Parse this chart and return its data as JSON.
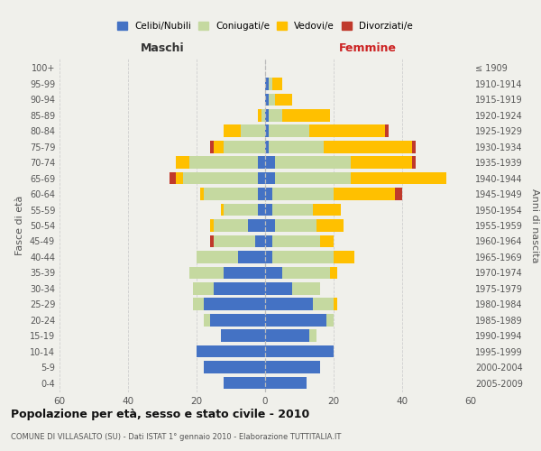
{
  "age_groups": [
    "0-4",
    "5-9",
    "10-14",
    "15-19",
    "20-24",
    "25-29",
    "30-34",
    "35-39",
    "40-44",
    "45-49",
    "50-54",
    "55-59",
    "60-64",
    "65-69",
    "70-74",
    "75-79",
    "80-84",
    "85-89",
    "90-94",
    "95-99",
    "100+"
  ],
  "birth_years": [
    "2005-2009",
    "2000-2004",
    "1995-1999",
    "1990-1994",
    "1985-1989",
    "1980-1984",
    "1975-1979",
    "1970-1974",
    "1965-1969",
    "1960-1964",
    "1955-1959",
    "1950-1954",
    "1945-1949",
    "1940-1944",
    "1935-1939",
    "1930-1934",
    "1925-1929",
    "1920-1924",
    "1915-1919",
    "1910-1914",
    "≤ 1909"
  ],
  "males": {
    "celibi": [
      12,
      18,
      20,
      13,
      16,
      18,
      15,
      12,
      8,
      3,
      5,
      2,
      2,
      2,
      2,
      0,
      0,
      0,
      0,
      0,
      0
    ],
    "coniugati": [
      0,
      0,
      0,
      0,
      2,
      3,
      6,
      10,
      12,
      12,
      10,
      10,
      16,
      22,
      20,
      12,
      7,
      1,
      0,
      0,
      0
    ],
    "vedovi": [
      0,
      0,
      0,
      0,
      0,
      0,
      0,
      0,
      0,
      0,
      1,
      1,
      1,
      2,
      4,
      3,
      5,
      1,
      0,
      0,
      0
    ],
    "divorziati": [
      0,
      0,
      0,
      0,
      0,
      0,
      0,
      0,
      0,
      1,
      0,
      0,
      0,
      2,
      0,
      1,
      0,
      0,
      0,
      0,
      0
    ]
  },
  "females": {
    "nubili": [
      12,
      16,
      20,
      13,
      18,
      14,
      8,
      5,
      2,
      2,
      3,
      2,
      2,
      3,
      3,
      1,
      1,
      1,
      1,
      1,
      0
    ],
    "coniugate": [
      0,
      0,
      0,
      2,
      2,
      6,
      8,
      14,
      18,
      14,
      12,
      12,
      18,
      22,
      22,
      16,
      12,
      4,
      2,
      1,
      0
    ],
    "vedove": [
      0,
      0,
      0,
      0,
      0,
      1,
      0,
      2,
      6,
      4,
      8,
      8,
      18,
      28,
      18,
      26,
      22,
      14,
      5,
      3,
      0
    ],
    "divorziate": [
      0,
      0,
      0,
      0,
      0,
      0,
      0,
      0,
      0,
      0,
      0,
      0,
      2,
      0,
      1,
      1,
      1,
      0,
      0,
      0,
      0
    ]
  },
  "colors": {
    "celibi_nubili": "#4472c4",
    "coniugati": "#c5d9a0",
    "vedovi": "#ffc000",
    "divorziati": "#c0392b"
  },
  "xlim": 60,
  "title": "Popolazione per età, sesso e stato civile - 2010",
  "subtitle": "COMUNE DI VILLASALTO (SU) - Dati ISTAT 1° gennaio 2010 - Elaborazione TUTTITALIA.IT",
  "ylabel_left": "Fasce di età",
  "ylabel_right": "Anni di nascita",
  "xlabel_left": "Maschi",
  "xlabel_right": "Femmine",
  "bg_color": "#f0f0eb",
  "grid_color": "#cccccc"
}
